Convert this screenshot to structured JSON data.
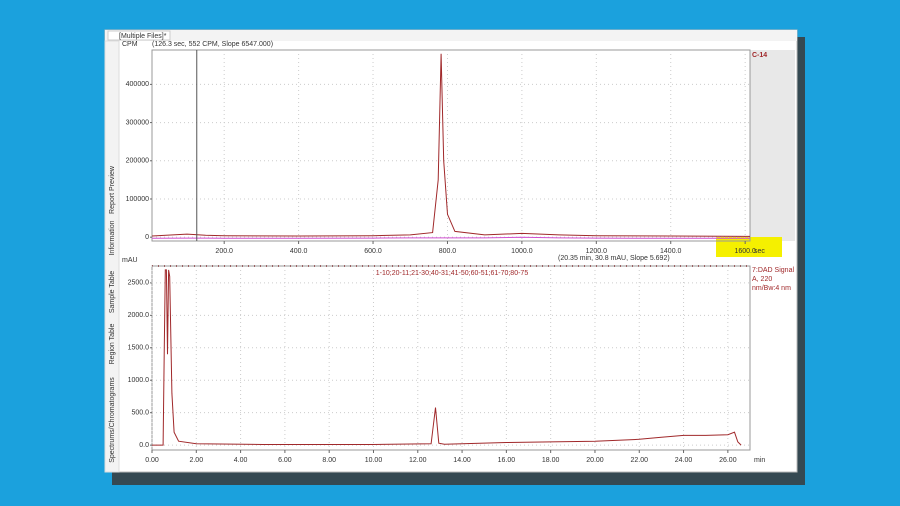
{
  "window": {
    "tab": "[Multiple Files]*",
    "side_tabs": [
      "Report Preview",
      "Information",
      "Sample Table",
      "Region Table",
      "Spectrums/Chromatograms"
    ]
  },
  "chart_data": [
    {
      "type": "line",
      "y_label": "CPM",
      "x_label": "sec",
      "cursor_info": "(126.3 sec, 552 CPM, Slope 6547.000)",
      "status": "(20.35 min, 30.8 mAU, Slope 5.692)",
      "cursor_x": 126.3,
      "x": [
        6,
        100,
        150,
        200,
        400,
        600,
        700,
        760,
        775,
        783,
        790,
        800,
        820,
        900,
        1000,
        1100,
        1200,
        1400,
        1600,
        1613
      ],
      "series": [
        {
          "name": "C-14",
          "color": "#a0282a",
          "values": [
            3000,
            8000,
            5000,
            4000,
            3000,
            4000,
            6000,
            12000,
            150000,
            480000,
            200000,
            60000,
            15000,
            6000,
            10000,
            6000,
            4000,
            3000,
            2000,
            2000
          ]
        },
        {
          "color": "#d04fd0",
          "values": [
            -3000,
            -2500,
            -2500,
            -3000,
            -3000,
            -2500,
            -2000,
            -2000,
            -2000,
            -2000,
            -2000,
            -2000,
            -2000,
            -2000,
            0,
            -2000,
            -2500,
            -3000,
            -3000,
            -3000
          ]
        }
      ],
      "xlim": [
        6,
        1613
      ],
      "ylim": [
        -10000,
        490000
      ],
      "xticks": [
        {
          "value": 200,
          "label": "200.0"
        },
        {
          "value": 400,
          "label": "400.0"
        },
        {
          "value": 600,
          "label": "600.0"
        },
        {
          "value": 800,
          "label": "800.0"
        },
        {
          "value": 1000,
          "label": "1000.0"
        },
        {
          "value": 1200,
          "label": "1200.0"
        },
        {
          "value": 1400,
          "label": "1400.0"
        },
        {
          "value": 1600,
          "label": "1600.0"
        }
      ],
      "yticks": [
        0,
        100000,
        200000,
        300000,
        400000
      ],
      "grid": true
    },
    {
      "type": "line",
      "y_label": "mAU",
      "x_label": "min",
      "annotation": "1-10;20-11;21-30;40-31;41-50;60-51;61-70;80-75",
      "x": [
        0,
        0.5,
        0.55,
        0.6,
        0.65,
        0.7,
        0.75,
        0.8,
        0.9,
        1.0,
        1.2,
        2,
        5,
        10,
        12.6,
        12.8,
        12.95,
        13.2,
        14,
        16,
        18,
        20,
        22,
        23,
        24,
        25,
        26,
        26.3,
        26.45,
        26.6
      ],
      "series": [
        {
          "name": "7:DAD Signal A, 220 nm/Bw:4 nm",
          "color": "#a0282a",
          "values": [
            0,
            0,
            1400,
            2700,
            2700,
            1400,
            2700,
            2600,
            800,
            200,
            60,
            20,
            10,
            10,
            20,
            580,
            30,
            15,
            20,
            40,
            50,
            60,
            90,
            120,
            150,
            150,
            160,
            200,
            50,
            0
          ]
        }
      ],
      "xlim": [
        0,
        27
      ],
      "ylim": [
        -75,
        2760
      ],
      "xticks": [
        {
          "value": 0,
          "label": "0.00"
        },
        {
          "value": 2,
          "label": "2.00"
        },
        {
          "value": 4,
          "label": "4.00"
        },
        {
          "value": 6,
          "label": "6.00"
        },
        {
          "value": 8,
          "label": "8.00"
        },
        {
          "value": 10,
          "label": "10.00"
        },
        {
          "value": 12,
          "label": "12.00"
        },
        {
          "value": 14,
          "label": "14.00"
        },
        {
          "value": 16,
          "label": "16.00"
        },
        {
          "value": 18,
          "label": "18.00"
        },
        {
          "value": 20,
          "label": "20.00"
        },
        {
          "value": 22,
          "label": "22.00"
        },
        {
          "value": 24,
          "label": "24.00"
        },
        {
          "value": 26,
          "label": "26.00"
        }
      ],
      "yticks": [
        {
          "value": 0,
          "label": "0.0"
        },
        {
          "value": 500,
          "label": "500.0"
        },
        {
          "value": 1000,
          "label": "1000.0"
        },
        {
          "value": 1500,
          "label": "1500.0"
        },
        {
          "value": 2000,
          "label": "2000.0"
        },
        {
          "value": 2500,
          "label": "2500.0"
        }
      ],
      "grid": true
    }
  ]
}
